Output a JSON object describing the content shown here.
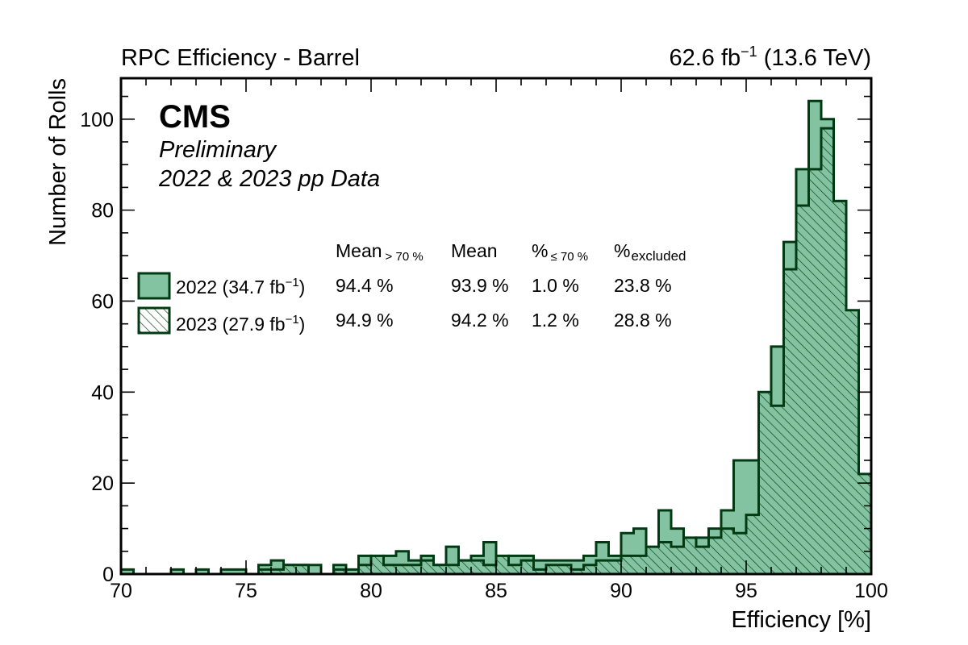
{
  "chart_data": {
    "type": "bar",
    "histtype": "step-filled",
    "title_left": "RPC Efficiency - Barrel",
    "title_right_value": "62.6 fb",
    "title_right_exp": "−1",
    "title_right_suffix": " (13.6 TeV)",
    "experiment": "CMS",
    "status": "Preliminary",
    "dataset": "2022 & 2023 pp Data",
    "xlabel": "Efficiency [%]",
    "ylabel": "Number of Rolls",
    "xlim": [
      70,
      100
    ],
    "ylim": [
      0,
      109
    ],
    "bin_width": 0.5,
    "x_ticks": [
      70,
      75,
      80,
      85,
      90,
      95,
      100
    ],
    "y_ticks": [
      0,
      20,
      40,
      60,
      80,
      100
    ],
    "legend_placement": "upper-left",
    "stats_headers": {
      "mean_gt70": "Mean",
      "mean_gt70_sub": "> 70 %",
      "mean": "Mean",
      "pct_le70": "%",
      "pct_le70_sub": "≤ 70 %",
      "pct_excluded": "%",
      "pct_excluded_sub": "excluded"
    },
    "series": [
      {
        "name": "2022",
        "legend_prefix": "2022 (34.7 fb",
        "legend_exp": "−1",
        "legend_suffix": ")",
        "style": "filled",
        "color": "#84c3a2",
        "edge": "#003a12",
        "stats": {
          "mean_gt70": "94.4 %",
          "mean": "93.9 %",
          "pct_le70": "1.0 %",
          "pct_excluded": "23.8 %"
        },
        "values": [
          1,
          0,
          0,
          0,
          1,
          0,
          1,
          0,
          1,
          1,
          0,
          2,
          3,
          2,
          2,
          2,
          0,
          2,
          1,
          4,
          3,
          4,
          5,
          3,
          4,
          2,
          6,
          3,
          4,
          7,
          3,
          4,
          4,
          3,
          3,
          3,
          3,
          4,
          7,
          4,
          9,
          10,
          3,
          14,
          10,
          6,
          8,
          10,
          14,
          25,
          25,
          38,
          50,
          73,
          89,
          104,
          100,
          82,
          53,
          5,
          2,
          0
        ],
        "note": "bin i covers [70+0.5*i, 70+0.5*(i+1)]"
      },
      {
        "name": "2023",
        "legend_prefix": "2023 (27.9 fb",
        "legend_exp": "−1",
        "legend_suffix": ")",
        "style": "hatched",
        "color": "#ffffff",
        "edge": "#003a12",
        "stats": {
          "mean_gt70": "94.9 %",
          "mean": "94.2 %",
          "pct_le70": "1.2 %",
          "pct_excluded": "28.8 %"
        },
        "values": [
          0,
          0,
          0,
          0,
          0,
          0,
          0,
          0,
          0,
          0,
          0,
          1,
          1,
          2,
          2,
          0,
          0,
          1,
          0,
          2,
          4,
          2,
          2,
          2,
          3,
          2,
          2,
          3,
          3,
          2,
          4,
          2,
          3,
          1,
          2,
          2,
          1,
          2,
          3,
          3,
          4,
          4,
          6,
          7,
          6,
          8,
          6,
          8,
          10,
          9,
          13,
          40,
          37,
          67,
          81,
          89,
          98,
          82,
          58,
          22,
          2,
          0
        ],
        "note": "bin i covers [70+0.5*i, 70+0.5*(i+1)]"
      }
    ]
  }
}
